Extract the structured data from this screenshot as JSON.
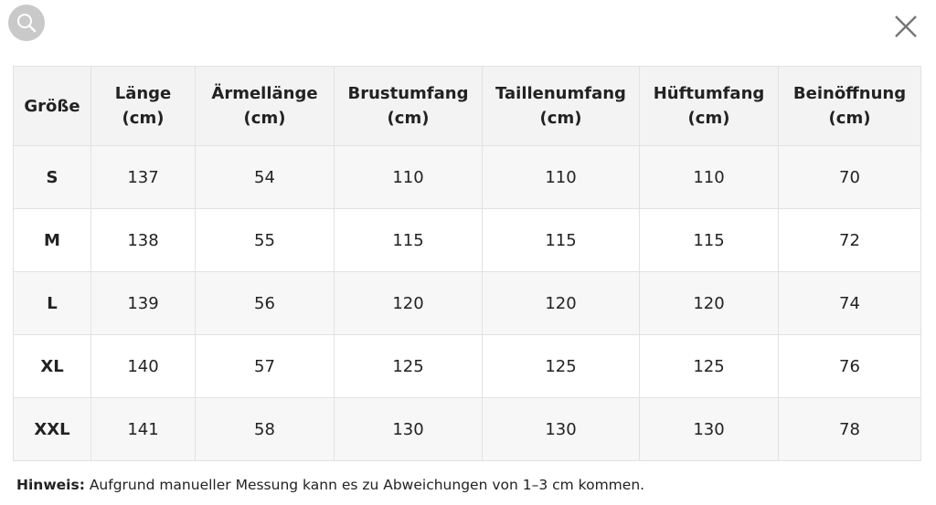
{
  "table": {
    "header": [
      "Größe",
      "Länge\n(cm)",
      "Ärmellänge\n(cm)",
      "Brustumfang\n(cm)",
      "Taillenumfang\n(cm)",
      "Hüftumfang\n(cm)",
      "Beinöffnung\n(cm)"
    ],
    "rows": [
      [
        "S",
        137,
        54,
        110,
        110,
        110,
        70
      ],
      [
        "M",
        138,
        55,
        115,
        115,
        115,
        72
      ],
      [
        "L",
        139,
        56,
        120,
        120,
        120,
        74
      ],
      [
        "XL",
        140,
        57,
        125,
        125,
        125,
        76
      ],
      [
        "XXL",
        141,
        58,
        130,
        130,
        130,
        78
      ]
    ]
  },
  "note": {
    "label": "Hinweis:",
    "text": "Aufgrund manueller Messung kann es zu Abweichungen von 1–3 cm kommen."
  }
}
